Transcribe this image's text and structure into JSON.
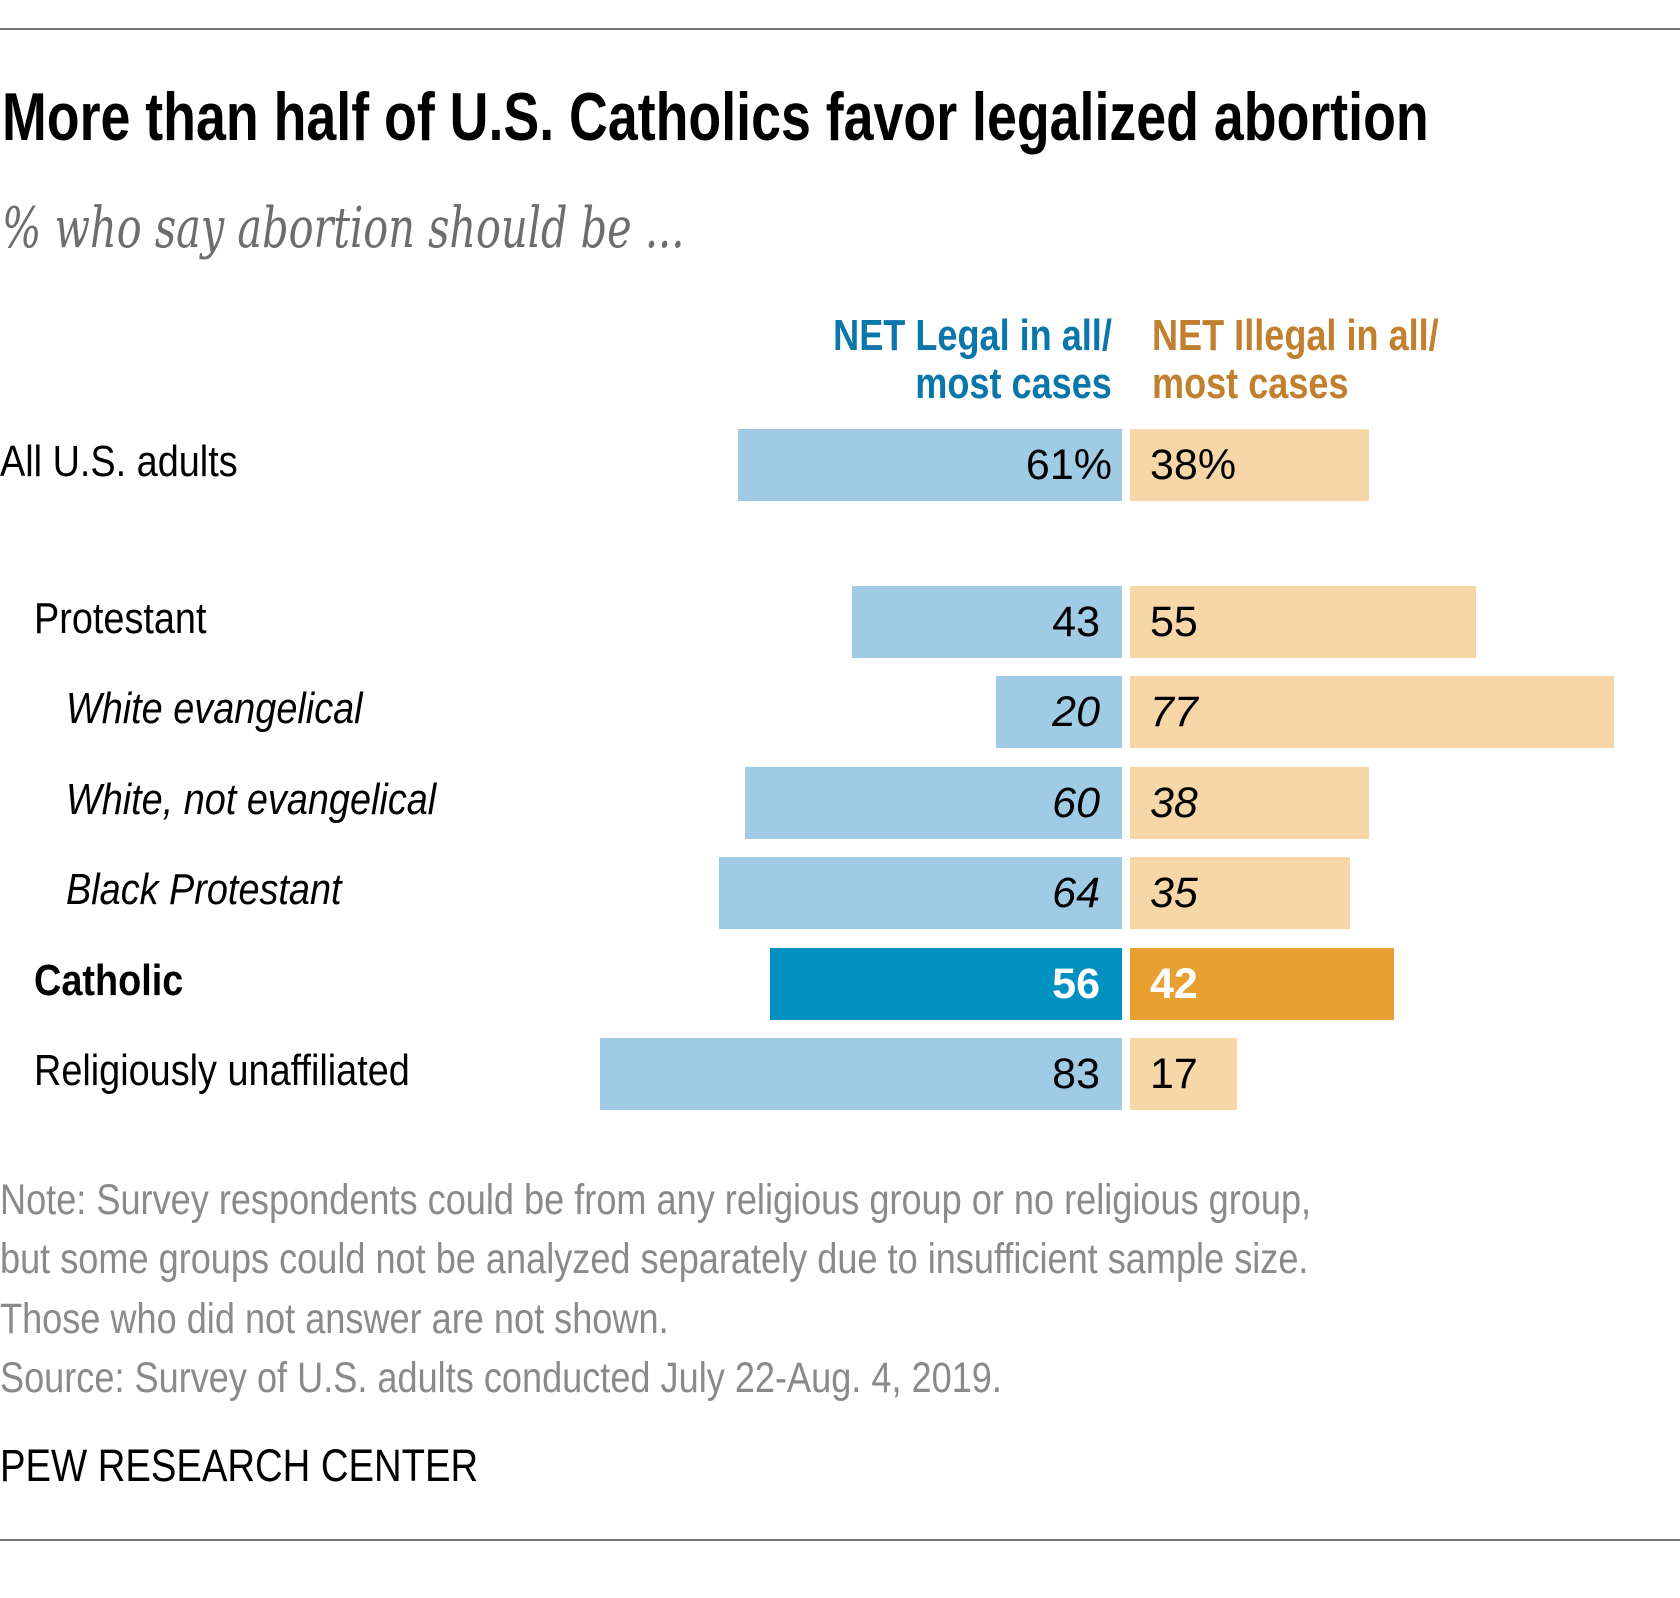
{
  "chart_data": {
    "type": "bar",
    "orientation": "horizontal-diverging",
    "title": "More than half of U.S. Catholics favor legalized abortion",
    "subtitle": "% who say abortion should be ...",
    "categories": [
      "All U.S. adults",
      "Protestant",
      "White evangelical",
      "White, not evangelical",
      "Black Protestant",
      "Catholic",
      "Religiously unaffiliated"
    ],
    "category_styles": [
      "normal",
      "normal",
      "italic",
      "italic",
      "italic",
      "bold",
      "normal"
    ],
    "highlight": "Catholic",
    "series": [
      {
        "name": "NET Legal in all/ most cases",
        "header_lines": [
          "NET Legal in all/",
          "most cases"
        ],
        "values": [
          61,
          43,
          20,
          60,
          64,
          56,
          83
        ],
        "labels": [
          "61%",
          "43",
          "20",
          "60",
          "64",
          "56",
          "83"
        ],
        "color": "#a0cbe5",
        "highlight_color": "#0091c0",
        "header_color": "#0b76a9"
      },
      {
        "name": "NET Illegal in all/ most cases",
        "header_lines": [
          "NET Illegal in all/",
          "most cases"
        ],
        "values": [
          38,
          55,
          77,
          38,
          35,
          42,
          17
        ],
        "labels": [
          "38%",
          "55",
          "77",
          "38",
          "35",
          "42",
          "17"
        ],
        "color": "#f7d6a7",
        "highlight_color": "#eaa031",
        "header_color": "#c27f2e"
      }
    ],
    "grid": false,
    "legend": "column headers above bars"
  },
  "notes": [
    "Note: Survey respondents could be from any religious group or no religious group,",
    "but some groups could not be analyzed separately due to insufficient sample size.",
    "Those who did not answer are not shown.",
    "Source: Survey of U.S. adults conducted July 22-Aug. 4, 2019."
  ],
  "brand": "PEW RESEARCH CENTER"
}
